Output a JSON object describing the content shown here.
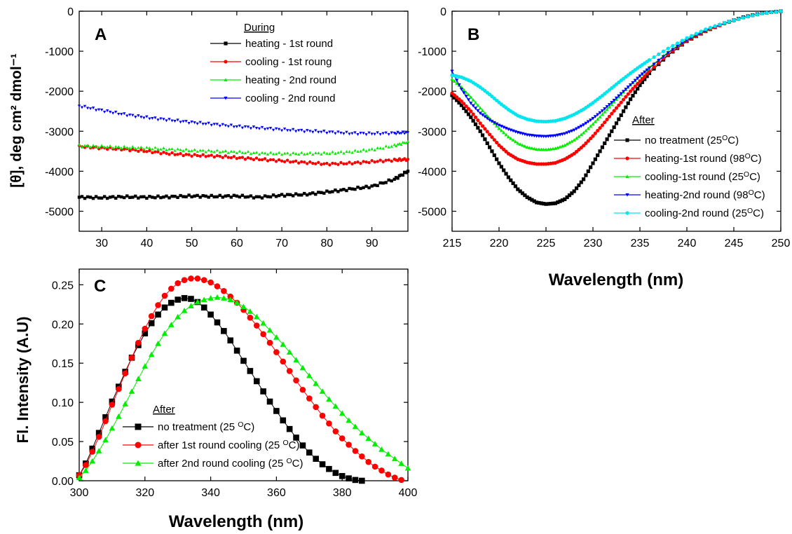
{
  "figure": {
    "shared_xlabel": "Wavelength (nm)",
    "ylabel_ab": "[θ], deg cm² dmol⁻¹"
  },
  "chart_data": [
    {
      "id": "A",
      "type": "scatter",
      "panel_label": "A",
      "xlabel": "",
      "ylabel": "[θ], deg cm² dmol⁻¹",
      "xlim": [
        25,
        98
      ],
      "ylim": [
        -5500,
        0
      ],
      "xticks": [
        30,
        40,
        50,
        60,
        70,
        80,
        90
      ],
      "yticks": [
        0,
        -1000,
        -2000,
        -3000,
        -4000,
        -5000
      ],
      "legend_title": "During",
      "series": [
        {
          "name": "heating - 1st round",
          "color": "#000000",
          "marker": "square",
          "x": [
            25,
            30,
            35,
            40,
            45,
            50,
            55,
            60,
            65,
            70,
            75,
            80,
            85,
            90,
            95,
            98
          ],
          "y": [
            -4650,
            -4660,
            -4640,
            -4650,
            -4640,
            -4620,
            -4630,
            -4620,
            -4650,
            -4600,
            -4580,
            -4520,
            -4450,
            -4380,
            -4200,
            -4000
          ]
        },
        {
          "name": "cooling - 1st roung",
          "color": "#ff0000",
          "marker": "circle",
          "x": [
            25,
            30,
            35,
            40,
            45,
            50,
            55,
            60,
            65,
            70,
            75,
            80,
            85,
            90,
            95,
            98
          ],
          "y": [
            -3380,
            -3420,
            -3450,
            -3500,
            -3560,
            -3600,
            -3620,
            -3660,
            -3700,
            -3740,
            -3780,
            -3820,
            -3800,
            -3760,
            -3720,
            -3700
          ]
        },
        {
          "name": "heating - 2nd round",
          "color": "#00ee00",
          "marker": "triangle-up",
          "x": [
            25,
            30,
            35,
            40,
            45,
            50,
            55,
            60,
            65,
            70,
            75,
            80,
            85,
            90,
            95,
            98
          ],
          "y": [
            -3360,
            -3380,
            -3400,
            -3420,
            -3450,
            -3480,
            -3500,
            -3520,
            -3550,
            -3560,
            -3560,
            -3550,
            -3520,
            -3460,
            -3360,
            -3260
          ]
        },
        {
          "name": "cooling - 2nd round",
          "color": "#0000ff",
          "marker": "triangle-down",
          "x": [
            25,
            30,
            35,
            40,
            45,
            50,
            55,
            60,
            65,
            70,
            75,
            80,
            85,
            90,
            95,
            98
          ],
          "y": [
            -2370,
            -2480,
            -2580,
            -2660,
            -2720,
            -2780,
            -2830,
            -2880,
            -2920,
            -2960,
            -2990,
            -3020,
            -3050,
            -3060,
            -3050,
            -3030
          ]
        }
      ]
    },
    {
      "id": "B",
      "type": "line",
      "panel_label": "B",
      "xlabel": "Wavelength (nm)",
      "ylabel": "",
      "xlim": [
        215,
        250
      ],
      "ylim": [
        -5500,
        0
      ],
      "xticks": [
        215,
        220,
        225,
        230,
        235,
        240,
        245,
        250
      ],
      "yticks": [
        0,
        -1000,
        -2000,
        -3000,
        -4000,
        -5000
      ],
      "legend_title": "After",
      "series": [
        {
          "name": "no treatment (25°C)",
          "color": "#000000",
          "marker": "square",
          "x": [
            215,
            216,
            217,
            218,
            219,
            220,
            221,
            222,
            223,
            224,
            225,
            226,
            227,
            228,
            229,
            230,
            231,
            232,
            233,
            234,
            235,
            236,
            238,
            240,
            242,
            244,
            246,
            248,
            250
          ],
          "y": [
            -2100,
            -2350,
            -2650,
            -3000,
            -3400,
            -3800,
            -4150,
            -4450,
            -4650,
            -4780,
            -4820,
            -4800,
            -4700,
            -4500,
            -4200,
            -3800,
            -3400,
            -3000,
            -2600,
            -2200,
            -1850,
            -1550,
            -1100,
            -750,
            -500,
            -300,
            -150,
            -50,
            0
          ]
        },
        {
          "name": "heating-1st round (98°C)",
          "color": "#ff0000",
          "marker": "circle",
          "x": [
            215,
            216,
            217,
            218,
            219,
            220,
            221,
            222,
            223,
            224,
            225,
            226,
            227,
            228,
            229,
            230,
            231,
            232,
            233,
            234,
            235,
            236,
            238,
            240,
            242,
            244,
            246,
            248,
            250
          ],
          "y": [
            -2050,
            -2250,
            -2500,
            -2800,
            -3080,
            -3350,
            -3560,
            -3700,
            -3780,
            -3820,
            -3820,
            -3790,
            -3700,
            -3560,
            -3360,
            -3120,
            -2850,
            -2560,
            -2280,
            -2000,
            -1750,
            -1500,
            -1080,
            -740,
            -500,
            -310,
            -160,
            -55,
            0
          ]
        },
        {
          "name": "cooling-1st round (25°C)",
          "color": "#00ee00",
          "marker": "triangle-up",
          "x": [
            215,
            216,
            217,
            218,
            219,
            220,
            221,
            222,
            223,
            224,
            225,
            226,
            227,
            228,
            229,
            230,
            231,
            232,
            233,
            234,
            235,
            236,
            238,
            240,
            242,
            244,
            246,
            248,
            250
          ],
          "y": [
            -1700,
            -1900,
            -2150,
            -2420,
            -2680,
            -2930,
            -3140,
            -3300,
            -3400,
            -3450,
            -3460,
            -3430,
            -3350,
            -3220,
            -3040,
            -2820,
            -2580,
            -2330,
            -2080,
            -1840,
            -1620,
            -1400,
            -1020,
            -700,
            -470,
            -300,
            -160,
            -55,
            0
          ]
        },
        {
          "name": "heating-2nd round (98°C)",
          "color": "#0000ff",
          "marker": "triangle-down",
          "x": [
            215,
            216,
            217,
            218,
            219,
            220,
            221,
            222,
            223,
            224,
            225,
            226,
            227,
            228,
            229,
            230,
            231,
            232,
            233,
            234,
            235,
            236,
            238,
            240,
            242,
            244,
            246,
            248,
            250
          ],
          "y": [
            -1500,
            -1950,
            -2300,
            -2550,
            -2720,
            -2850,
            -2950,
            -3030,
            -3090,
            -3120,
            -3130,
            -3110,
            -3060,
            -2970,
            -2840,
            -2680,
            -2490,
            -2280,
            -2060,
            -1840,
            -1620,
            -1420,
            -1040,
            -720,
            -480,
            -300,
            -160,
            -55,
            0
          ]
        },
        {
          "name": "cooling-2nd round (25°C)",
          "color": "#00e5ee",
          "marker": "circle",
          "x": [
            215,
            216,
            217,
            218,
            219,
            220,
            221,
            222,
            223,
            224,
            225,
            226,
            227,
            228,
            229,
            230,
            231,
            232,
            233,
            234,
            235,
            236,
            238,
            240,
            242,
            244,
            246,
            248,
            250
          ],
          "y": [
            -1600,
            -1650,
            -1750,
            -1900,
            -2080,
            -2280,
            -2460,
            -2610,
            -2700,
            -2750,
            -2760,
            -2740,
            -2680,
            -2580,
            -2450,
            -2290,
            -2110,
            -1920,
            -1730,
            -1550,
            -1380,
            -1220,
            -930,
            -670,
            -450,
            -290,
            -160,
            -55,
            0
          ]
        }
      ]
    },
    {
      "id": "C",
      "type": "line",
      "panel_label": "C",
      "xlabel": "Wavelength (nm)",
      "ylabel": "Fl. Intensity (A.U)",
      "xlim": [
        300,
        400
      ],
      "ylim": [
        0,
        0.27
      ],
      "xticks": [
        300,
        320,
        340,
        360,
        380,
        400
      ],
      "yticks": [
        "0.00",
        "0.05",
        "0.10",
        "0.15",
        "0.20",
        "0.25"
      ],
      "legend_title": "After",
      "series": [
        {
          "name": "no treatment (25  °C)",
          "color": "#000000",
          "marker": "square",
          "x": [
            300,
            302,
            304,
            306,
            308,
            310,
            312,
            314,
            316,
            318,
            320,
            322,
            324,
            326,
            328,
            330,
            332,
            334,
            336,
            338,
            340,
            342,
            344,
            346,
            348,
            350,
            352,
            354,
            356,
            358,
            360,
            362,
            364,
            366,
            368,
            370,
            372,
            374,
            376,
            378,
            380,
            382,
            384,
            386
          ],
          "y": [
            0.007,
            0.022,
            0.041,
            0.061,
            0.081,
            0.101,
            0.12,
            0.139,
            0.157,
            0.173,
            0.188,
            0.201,
            0.212,
            0.221,
            0.227,
            0.231,
            0.233,
            0.232,
            0.228,
            0.221,
            0.212,
            0.202,
            0.191,
            0.179,
            0.166,
            0.153,
            0.14,
            0.127,
            0.114,
            0.101,
            0.089,
            0.077,
            0.066,
            0.055,
            0.045,
            0.036,
            0.028,
            0.021,
            0.015,
            0.01,
            0.006,
            0.003,
            0.001,
            0.0
          ]
        },
        {
          "name": "after 1st round cooling (25  °C)",
          "color": "#ff0000",
          "marker": "circle",
          "x": [
            300,
            302,
            304,
            306,
            308,
            310,
            312,
            314,
            316,
            318,
            320,
            322,
            324,
            326,
            328,
            330,
            332,
            334,
            336,
            338,
            340,
            342,
            344,
            346,
            348,
            350,
            352,
            354,
            356,
            358,
            360,
            362,
            364,
            366,
            368,
            370,
            372,
            374,
            376,
            378,
            380,
            382,
            384,
            386,
            388,
            390,
            392,
            394,
            396,
            398
          ],
          "y": [
            0.007,
            0.02,
            0.037,
            0.056,
            0.076,
            0.097,
            0.117,
            0.137,
            0.157,
            0.176,
            0.194,
            0.21,
            0.224,
            0.236,
            0.245,
            0.252,
            0.256,
            0.258,
            0.258,
            0.256,
            0.253,
            0.248,
            0.242,
            0.235,
            0.227,
            0.218,
            0.208,
            0.198,
            0.187,
            0.176,
            0.164,
            0.152,
            0.14,
            0.128,
            0.116,
            0.105,
            0.094,
            0.083,
            0.073,
            0.063,
            0.054,
            0.046,
            0.038,
            0.031,
            0.024,
            0.018,
            0.013,
            0.008,
            0.004,
            0.001
          ]
        },
        {
          "name": "after 2nd round cooling (25  °C)",
          "color": "#00ee00",
          "marker": "triangle-up",
          "x": [
            300,
            302,
            304,
            306,
            308,
            310,
            312,
            314,
            316,
            318,
            320,
            322,
            324,
            326,
            328,
            330,
            332,
            334,
            336,
            338,
            340,
            342,
            344,
            346,
            348,
            350,
            352,
            354,
            356,
            358,
            360,
            362,
            364,
            366,
            368,
            370,
            372,
            374,
            376,
            378,
            380,
            382,
            384,
            386,
            388,
            390,
            392,
            394,
            396,
            398,
            400
          ],
          "y": [
            0.004,
            0.013,
            0.025,
            0.038,
            0.052,
            0.067,
            0.082,
            0.098,
            0.114,
            0.13,
            0.146,
            0.161,
            0.175,
            0.188,
            0.199,
            0.209,
            0.217,
            0.223,
            0.228,
            0.231,
            0.233,
            0.234,
            0.233,
            0.231,
            0.227,
            0.222,
            0.216,
            0.209,
            0.201,
            0.192,
            0.183,
            0.174,
            0.164,
            0.154,
            0.144,
            0.134,
            0.124,
            0.114,
            0.104,
            0.095,
            0.086,
            0.077,
            0.069,
            0.061,
            0.054,
            0.047,
            0.04,
            0.034,
            0.028,
            0.022,
            0.016
          ]
        }
      ]
    }
  ]
}
